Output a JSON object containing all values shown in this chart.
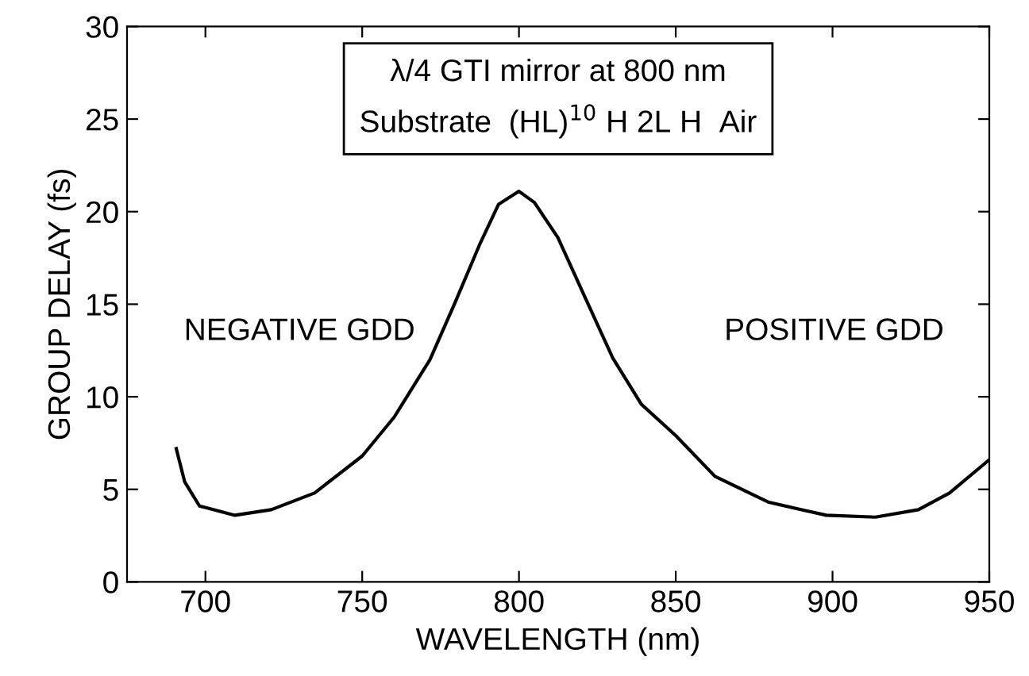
{
  "chart_data": {
    "type": "line",
    "xlabel": "WAVELENGTH (nm)",
    "ylabel": "GROUP DELAY (fs)",
    "x": [
      690.7,
      693.4,
      698.1,
      709.4,
      721.0,
      734.8,
      750.0,
      760.2,
      771.6,
      779.4,
      787.4,
      793.5,
      800.0,
      804.9,
      812.4,
      821.0,
      829.9,
      839.0,
      850.0,
      862.5,
      879.7,
      898.0,
      913.7,
      927.4,
      937.3,
      950.0
    ],
    "series": [
      {
        "color": "#000000",
        "values": [
          7.2,
          5.4,
          4.1,
          3.6,
          3.9,
          4.8,
          6.8,
          8.9,
          12.0,
          15.0,
          18.2,
          20.4,
          21.1,
          20.5,
          18.6,
          15.4,
          12.1,
          9.6,
          7.9,
          5.7,
          4.3,
          3.6,
          3.5,
          3.9,
          4.8,
          6.6
        ]
      }
    ],
    "xlim": [
      675,
      950
    ],
    "ylim": [
      0,
      30
    ],
    "xticks": [
      700,
      750,
      800,
      850,
      900,
      950
    ],
    "yticks": [
      0,
      5,
      10,
      15,
      20,
      25,
      30
    ],
    "annotations": [
      "λ/4 GTI mirror at 800 nm\nSubstrate  (HL)$^{10}$ H 2L H  Air",
      "NEGATIVE GDD",
      "POSITIVE GDD"
    ],
    "grid": false,
    "legend": false,
    "marker": "none",
    "line_style": "solid"
  }
}
